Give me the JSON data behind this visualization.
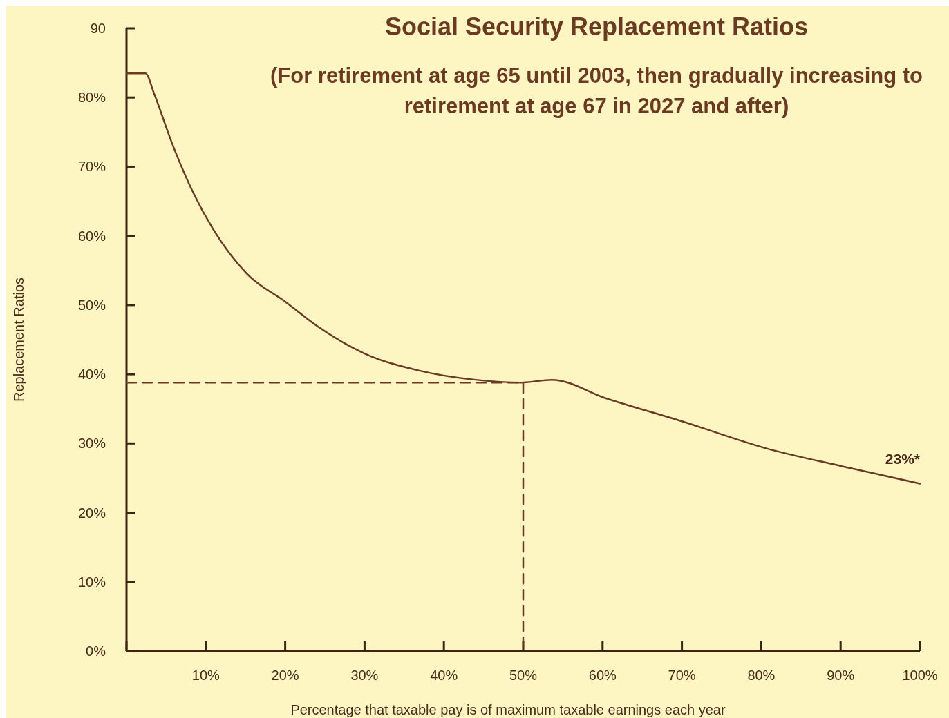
{
  "chart_data": {
    "type": "line",
    "title": "Social Security Replacement Ratios",
    "subtitle": "(For retirement at age 65 until 2003, then gradually increasing to retirement at age 67 in 2027 and after)",
    "xlabel": "Percentage that taxable pay is of maximum taxable earnings each year",
    "ylabel": "Replacement Ratios",
    "xlim": [
      0,
      100
    ],
    "ylim": [
      0,
      90
    ],
    "xticks": [
      {
        "value": 0,
        "label": null
      },
      {
        "value": 10,
        "label": "10%"
      },
      {
        "value": 20,
        "label": "20%"
      },
      {
        "value": 30,
        "label": "30%"
      },
      {
        "value": 40,
        "label": "40%"
      },
      {
        "value": 50,
        "label": "50%"
      },
      {
        "value": 60,
        "label": "60%"
      },
      {
        "value": 70,
        "label": "70%"
      },
      {
        "value": 80,
        "label": "80%"
      },
      {
        "value": 90,
        "label": "90%"
      },
      {
        "value": 100,
        "label": "100%"
      }
    ],
    "yticks": [
      {
        "value": 0,
        "label": "0%"
      },
      {
        "value": 10,
        "label": "10%"
      },
      {
        "value": 20,
        "label": "20%"
      },
      {
        "value": 30,
        "label": "30%"
      },
      {
        "value": 40,
        "label": "40%"
      },
      {
        "value": 50,
        "label": "50%"
      },
      {
        "value": 60,
        "label": "60%"
      },
      {
        "value": 70,
        "label": "70%"
      },
      {
        "value": 80,
        "label": "80%"
      },
      {
        "value": 90,
        "label": "90"
      }
    ],
    "grid": false,
    "marker": "none",
    "series": [
      {
        "color": "#6b3a22",
        "line_style": "solid",
        "x": [
          0,
          2.4,
          3.5,
          5.7,
          8.3,
          10.9,
          15.2,
          20,
          24,
          30,
          37,
          44,
          49.7,
          53.6,
          60.5,
          70,
          80.6,
          90.2,
          100
        ],
        "values": [
          83.5,
          83.5,
          80.5,
          73.5,
          66.5,
          61,
          54.5,
          50.5,
          47,
          43,
          40.5,
          39.2,
          38.8,
          39.2,
          36.5,
          33.2,
          29.3,
          26.7,
          24.2
        ]
      },
      {
        "color": "#6b3a22",
        "line_style": "dashed",
        "x": [
          0,
          50,
          50
        ],
        "values": [
          38.8,
          38.8,
          0
        ]
      }
    ],
    "annotations": [
      {
        "text": "23%*",
        "x": 100,
        "y": 24.2
      }
    ]
  }
}
